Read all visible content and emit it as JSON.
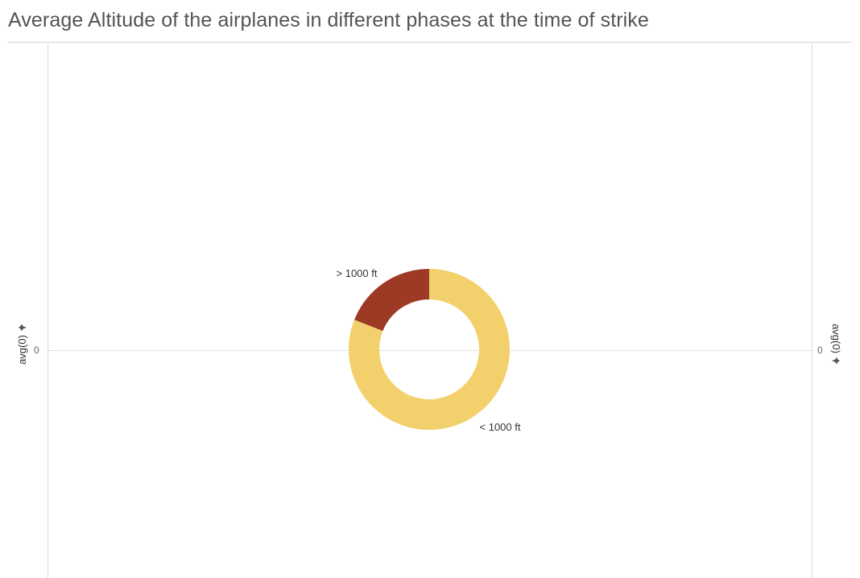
{
  "chart_data": {
    "type": "pie",
    "title": "Average Altitude of the airplanes in different phases at the time of strike",
    "categories": [
      "> 1000 ft",
      "< 1000 ft"
    ],
    "values": [
      19,
      81
    ],
    "colors": [
      "#9c3a25",
      "#f2d06b"
    ],
    "donut": true,
    "y_axis_left": {
      "label": "avg(0)",
      "ticks": [
        "0"
      ]
    },
    "y_axis_right": {
      "label": "avg(0)",
      "ticks": [
        "0"
      ]
    }
  },
  "icons": {
    "axis_pin": "pin-icon"
  }
}
